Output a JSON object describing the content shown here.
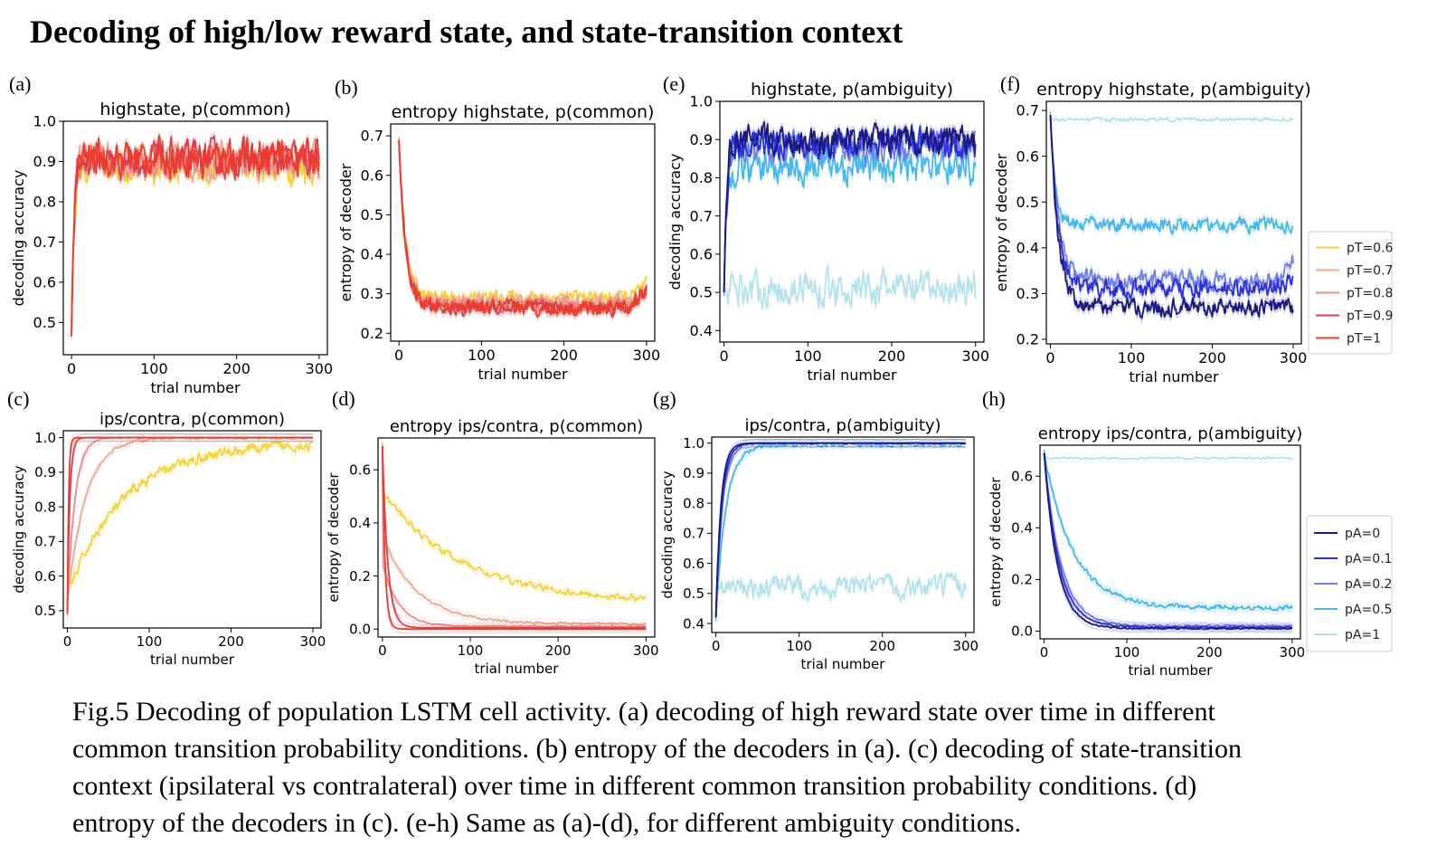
{
  "page": {
    "title": "Decoding of high/low reward state, and state-transition context",
    "caption_lines": [
      "Fig.5 Decoding of population LSTM cell activity. (a) decoding of high reward state over time in different",
      "common transition probability conditions. (b) entropy of the decoders in (a). (c) decoding of state-transition",
      "context (ipsilateral vs contralateral) over time in different common transition probability conditions. (d)",
      "entropy of the decoders in (c). (e-h) Same as (a)-(d), for different ambiguity conditions."
    ]
  },
  "legends": {
    "pT": [
      {
        "label": "pT=0.6",
        "color": "#f5d23a"
      },
      {
        "label": "pT=0.7",
        "color": "#f2a890"
      },
      {
        "label": "pT=0.8",
        "color": "#ef8a8a"
      },
      {
        "label": "pT=0.9",
        "color": "#dd3f4c"
      },
      {
        "label": "pT=1",
        "color": "#ef3b2c"
      }
    ],
    "pA": [
      {
        "label": "pA=0",
        "color": "#1a1a80"
      },
      {
        "label": "pA=0.1",
        "color": "#2b2fe0"
      },
      {
        "label": "pA=0.2",
        "color": "#6f82e8"
      },
      {
        "label": "pA=0.5",
        "color": "#45b8f0"
      },
      {
        "label": "pA=1",
        "color": "#b5e2ec"
      }
    ]
  },
  "chart_data": [
    {
      "panel": "(a)",
      "type": "line",
      "title": "highstate, p(common)",
      "xlabel": "trial number",
      "ylabel": "decoding accuracy",
      "xlim": [
        -10,
        310
      ],
      "ylim": [
        0.42,
        1.0
      ],
      "xticks": [
        0,
        100,
        200,
        300
      ],
      "yticks": [
        0.5,
        0.6,
        0.7,
        0.8,
        0.9,
        1.0
      ],
      "yticklabels": [
        "0.5",
        "0.6",
        "0.7",
        "0.8",
        "0.9",
        "1.0"
      ],
      "series": [
        {
          "color": "#f5d23a",
          "start": 0.5,
          "plateau": 0.89,
          "tau": 3,
          "noise": 0.035
        },
        {
          "color": "#f2a890",
          "start": 0.5,
          "plateau": 0.9,
          "tau": 3,
          "noise": 0.035
        },
        {
          "color": "#ef8a8a",
          "start": 0.48,
          "plateau": 0.9,
          "tau": 3,
          "noise": 0.035
        },
        {
          "color": "#dd3f4c",
          "start": 0.47,
          "plateau": 0.905,
          "tau": 3,
          "noise": 0.035
        },
        {
          "color": "#ef3b2c",
          "start": 0.465,
          "plateau": 0.91,
          "tau": 3,
          "noise": 0.035
        }
      ]
    },
    {
      "panel": "(b)",
      "type": "line",
      "title": "entropy highstate, p(common)",
      "xlabel": "trial number",
      "ylabel": "entropy of decoder",
      "xlim": [
        -10,
        310
      ],
      "ylim": [
        0.18,
        0.73
      ],
      "xticks": [
        0,
        100,
        200,
        300
      ],
      "yticks": [
        0.2,
        0.3,
        0.4,
        0.5,
        0.6,
        0.7
      ],
      "yticklabels": [
        "0.2",
        "0.3",
        "0.4",
        "0.5",
        "0.6",
        "0.7"
      ],
      "series": [
        {
          "color": "#f5d23a",
          "start": 0.69,
          "plateau": 0.29,
          "tau": 8,
          "noise": 0.015,
          "end_rise": 0.03
        },
        {
          "color": "#f2a890",
          "start": 0.69,
          "plateau": 0.28,
          "tau": 8,
          "noise": 0.015,
          "end_rise": 0.03
        },
        {
          "color": "#ef8a8a",
          "start": 0.69,
          "plateau": 0.27,
          "tau": 8,
          "noise": 0.015,
          "end_rise": 0.03
        },
        {
          "color": "#dd3f4c",
          "start": 0.69,
          "plateau": 0.265,
          "tau": 8,
          "noise": 0.015,
          "end_rise": 0.04
        },
        {
          "color": "#ef3b2c",
          "start": 0.69,
          "plateau": 0.265,
          "tau": 8,
          "noise": 0.015,
          "end_rise": 0.05
        }
      ]
    },
    {
      "panel": "(c)",
      "type": "line",
      "title": "ips/contra, p(common)",
      "xlabel": "trial number",
      "ylabel": "decoding accuracy",
      "xlim": [
        -5,
        310
      ],
      "ylim": [
        0.45,
        1.02
      ],
      "xticks": [
        0,
        100,
        200,
        300
      ],
      "yticks": [
        0.5,
        0.6,
        0.7,
        0.8,
        0.9,
        1.0
      ],
      "yticklabels": [
        "0.5",
        "0.6",
        "0.7",
        "0.8",
        "0.9",
        "1.0"
      ],
      "series": [
        {
          "color": "#f5d23a",
          "start": 0.55,
          "plateau": 0.985,
          "tau": 70,
          "noise": 0.012
        },
        {
          "color": "#f2a890",
          "start": 0.52,
          "plateau": 1.0,
          "tau": 22,
          "noise": 0.004
        },
        {
          "color": "#ef8a8a",
          "start": 0.5,
          "plateau": 1.0,
          "tau": 9,
          "noise": 0.002
        },
        {
          "color": "#dd3f4c",
          "start": 0.5,
          "plateau": 1.0,
          "tau": 3,
          "noise": 0.0
        },
        {
          "color": "#ef3b2c",
          "start": 0.49,
          "plateau": 1.0,
          "tau": 1.5,
          "noise": 0.0
        }
      ]
    },
    {
      "panel": "(d)",
      "type": "line",
      "title": "entropy ips/contra, p(common)",
      "xlabel": "trial number",
      "ylabel": "entropy of decoder",
      "xlim": [
        -5,
        310
      ],
      "ylim": [
        -0.03,
        0.72
      ],
      "xticks": [
        0,
        100,
        200,
        300
      ],
      "yticks": [
        0.0,
        0.2,
        0.4,
        0.6
      ],
      "yticklabels": [
        "0.0",
        "0.2",
        "0.4",
        "0.6"
      ],
      "series": [
        {
          "color": "#f5d23a",
          "start": 0.69,
          "plateau": 0.1,
          "tau": 90,
          "noise": 0.01,
          "jump": 0.52
        },
        {
          "color": "#f2a890",
          "start": 0.69,
          "plateau": 0.02,
          "tau": 40,
          "noise": 0.004,
          "jump": 0.35
        },
        {
          "color": "#ef8a8a",
          "start": 0.69,
          "plateau": 0.01,
          "tau": 18,
          "noise": 0.002,
          "jump": 0.25
        },
        {
          "color": "#dd3f4c",
          "start": 0.69,
          "plateau": 0.005,
          "tau": 6,
          "noise": 0.0
        },
        {
          "color": "#ef3b2c",
          "start": 0.69,
          "plateau": 0.0,
          "tau": 3,
          "noise": 0.0
        }
      ]
    },
    {
      "panel": "(e)",
      "type": "line",
      "title": "highstate, p(ambiguity)",
      "xlabel": "trial number",
      "ylabel": "decoding accuracy",
      "xlim": [
        -5,
        310
      ],
      "ylim": [
        0.37,
        1.0
      ],
      "xticks": [
        0,
        100,
        200,
        300
      ],
      "yticks": [
        0.4,
        0.5,
        0.6,
        0.7,
        0.8,
        0.9,
        1.0
      ],
      "yticklabels": [
        "0.4",
        "0.5",
        "0.6",
        "0.7",
        "0.8",
        "0.9",
        "1.0"
      ],
      "series": [
        {
          "color": "#b5e2ec",
          "start": 0.5,
          "plateau": 0.51,
          "tau": 1,
          "noise": 0.035
        },
        {
          "color": "#45b8f0",
          "start": 0.5,
          "plateau": 0.83,
          "tau": 3,
          "noise": 0.035
        },
        {
          "color": "#6f82e8",
          "start": 0.5,
          "plateau": 0.88,
          "tau": 3,
          "noise": 0.03
        },
        {
          "color": "#2b2fe0",
          "start": 0.5,
          "plateau": 0.89,
          "tau": 3,
          "noise": 0.03
        },
        {
          "color": "#1a1a80",
          "start": 0.5,
          "plateau": 0.9,
          "tau": 3,
          "noise": 0.03
        }
      ]
    },
    {
      "panel": "(f)",
      "type": "line",
      "title": "entropy highstate, p(ambiguity)",
      "xlabel": "trial number",
      "ylabel": "entropy of decoder",
      "xlim": [
        -5,
        310
      ],
      "ylim": [
        0.19,
        0.72
      ],
      "xticks": [
        0,
        100,
        200,
        300
      ],
      "yticks": [
        0.2,
        0.3,
        0.4,
        0.5,
        0.6,
        0.7
      ],
      "yticklabels": [
        "0.2",
        "0.3",
        "0.4",
        "0.5",
        "0.6",
        "0.7"
      ],
      "series": [
        {
          "color": "#b5e2ec",
          "start": 0.69,
          "plateau": 0.68,
          "tau": 1,
          "noise": 0.003
        },
        {
          "color": "#45b8f0",
          "start": 0.69,
          "plateau": 0.45,
          "tau": 6,
          "noise": 0.012
        },
        {
          "color": "#6f82e8",
          "start": 0.69,
          "plateau": 0.33,
          "tau": 10,
          "noise": 0.015,
          "end_rise": 0.04
        },
        {
          "color": "#2b2fe0",
          "start": 0.69,
          "plateau": 0.31,
          "tau": 10,
          "noise": 0.015,
          "end_rise": 0.02
        },
        {
          "color": "#1a1a80",
          "start": 0.69,
          "plateau": 0.27,
          "tau": 10,
          "noise": 0.015
        }
      ]
    },
    {
      "panel": "(g)",
      "type": "line",
      "title": "ips/contra, p(ambiguity)",
      "xlabel": "trial number",
      "ylabel": "decoding accuracy",
      "xlim": [
        -5,
        310
      ],
      "ylim": [
        0.37,
        1.02
      ],
      "xticks": [
        0,
        100,
        200,
        300
      ],
      "yticks": [
        0.4,
        0.5,
        0.6,
        0.7,
        0.8,
        0.9,
        1.0
      ],
      "yticklabels": [
        "0.4",
        "0.5",
        "0.6",
        "0.7",
        "0.8",
        "0.9",
        "1.0"
      ],
      "series": [
        {
          "color": "#b5e2ec",
          "start": 0.52,
          "plateau": 0.52,
          "tau": 1,
          "noise": 0.03
        },
        {
          "color": "#45b8f0",
          "start": 0.42,
          "plateau": 0.995,
          "tau": 12,
          "noise": 0.006
        },
        {
          "color": "#6f82e8",
          "start": 0.42,
          "plateau": 1.0,
          "tau": 8,
          "noise": 0.003
        },
        {
          "color": "#2b2fe0",
          "start": 0.42,
          "plateau": 1.0,
          "tau": 7,
          "noise": 0.002
        },
        {
          "color": "#1a1a80",
          "start": 0.42,
          "plateau": 1.0,
          "tau": 6,
          "noise": 0.0
        }
      ]
    },
    {
      "panel": "(h)",
      "type": "line",
      "title": "entropy ips/contra, p(ambiguity)",
      "xlabel": "trial number",
      "ylabel": "entropy of decoder",
      "xlim": [
        -5,
        310
      ],
      "ylim": [
        -0.03,
        0.72
      ],
      "xticks": [
        0,
        100,
        200,
        300
      ],
      "yticks": [
        0.0,
        0.2,
        0.4,
        0.6
      ],
      "yticklabels": [
        "0.0",
        "0.2",
        "0.4",
        "0.6"
      ],
      "series": [
        {
          "color": "#b5e2ec",
          "start": 0.68,
          "plateau": 0.67,
          "tau": 1,
          "noise": 0.003
        },
        {
          "color": "#45b8f0",
          "start": 0.69,
          "plateau": 0.09,
          "tau": 35,
          "noise": 0.008
        },
        {
          "color": "#6f82e8",
          "start": 0.69,
          "plateau": 0.02,
          "tau": 20,
          "noise": 0.003
        },
        {
          "color": "#2b2fe0",
          "start": 0.69,
          "plateau": 0.015,
          "tau": 18,
          "noise": 0.002
        },
        {
          "color": "#1a1a80",
          "start": 0.69,
          "plateau": 0.01,
          "tau": 16,
          "noise": 0.002
        }
      ]
    }
  ]
}
